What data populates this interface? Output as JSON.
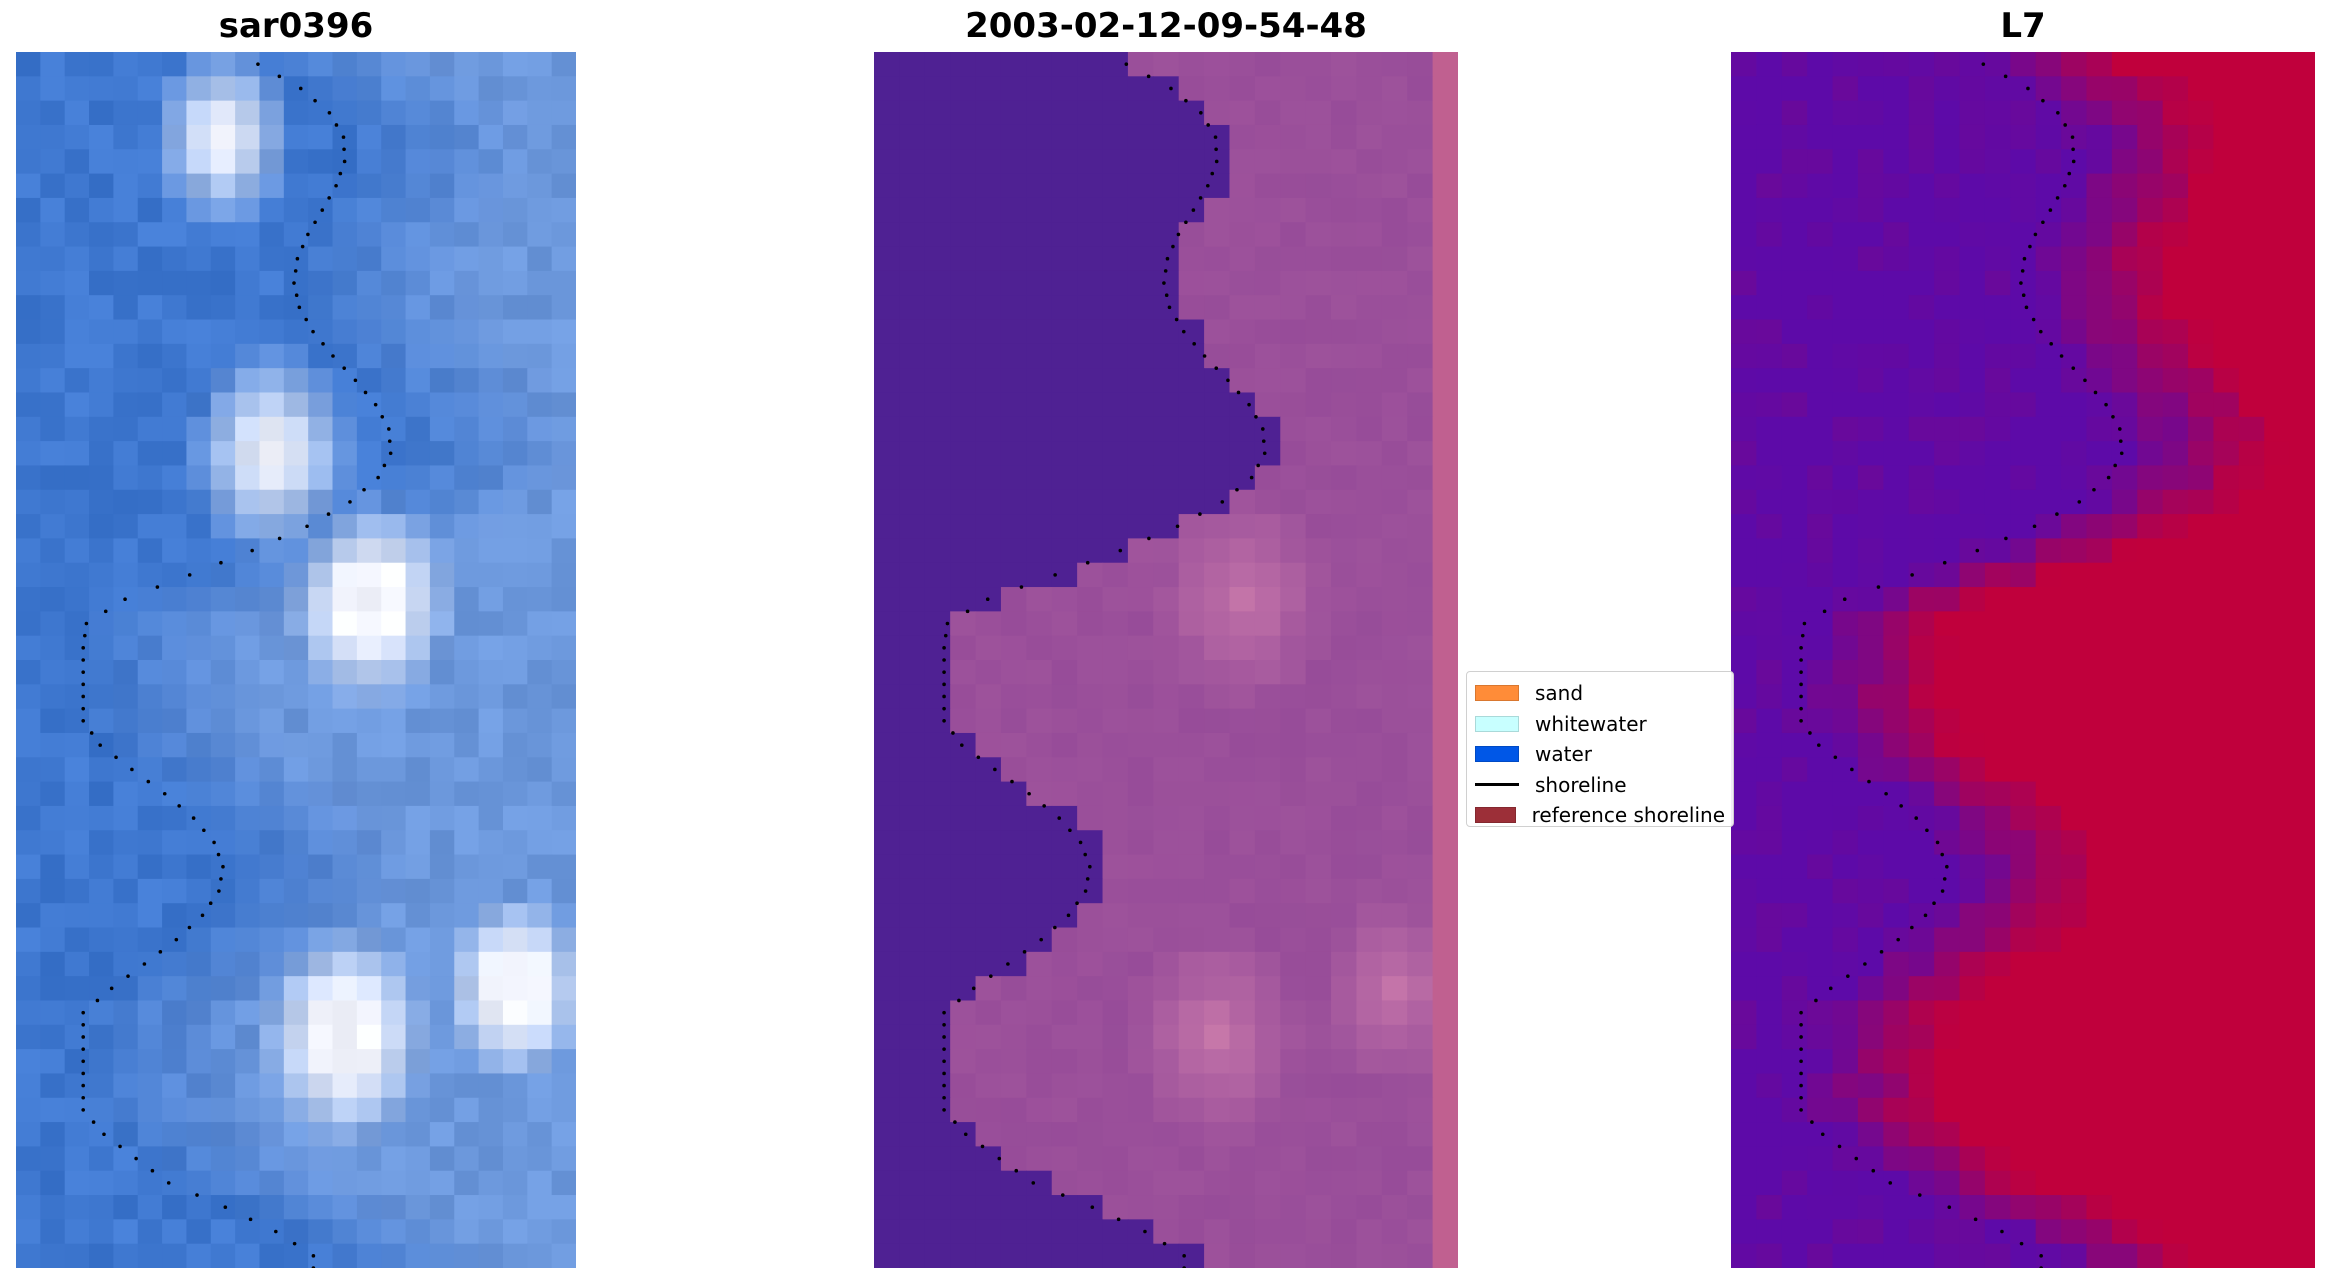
{
  "panels": [
    {
      "title": "sar0396",
      "style": "rgb"
    },
    {
      "title": "2003-02-12-09-54-48",
      "style": "classified"
    },
    {
      "title": "L7",
      "style": "index"
    }
  ],
  "colors": {
    "rgb_water": "#3f78d0",
    "rgb_foam": "#f4f6ff",
    "class_water": "#4f2193",
    "class_land": "#9a4f9a",
    "class_strip": "#c06090",
    "index_low": "#5d0aa8",
    "index_high": "#c0003c"
  },
  "legend": {
    "items": [
      {
        "label": "sand",
        "color": "#ff8c38",
        "kind": "patch"
      },
      {
        "label": "whitewater",
        "color": "#c8ffff",
        "kind": "patch"
      },
      {
        "label": "water",
        "color": "#0057e7",
        "kind": "patch"
      },
      {
        "label": "shoreline",
        "color": "#000000",
        "kind": "line"
      },
      {
        "label": "reference shoreline",
        "color": "#9c2f38",
        "kind": "patch"
      }
    ]
  }
}
